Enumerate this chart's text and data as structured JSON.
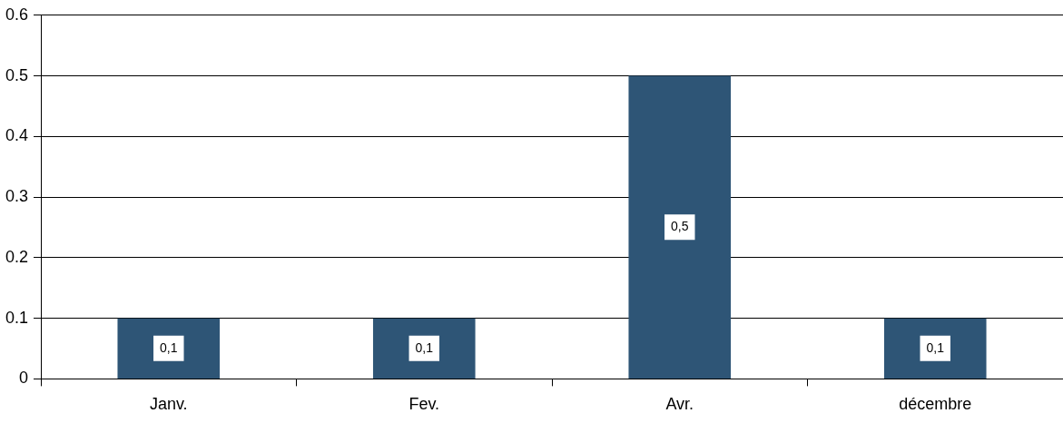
{
  "chart_data": {
    "type": "bar",
    "categories": [
      "Janv.",
      "Fev.",
      "Avr.",
      "décembre"
    ],
    "values": [
      0.1,
      0.1,
      0.5,
      0.1
    ],
    "color": "#2e5576",
    "value_labels": [
      "0,1",
      "0,1",
      "0,5",
      "0,1"
    ],
    "ylim": [
      0,
      0.6
    ],
    "yticks": [
      0,
      0.1,
      0.2,
      0.3,
      0.4,
      0.5,
      0.6
    ],
    "grid": "y",
    "legend": false
  }
}
